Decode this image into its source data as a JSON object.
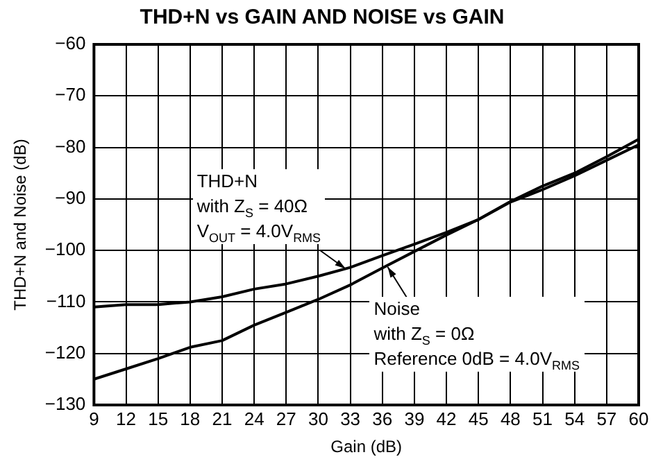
{
  "chart_data": {
    "type": "line",
    "title": "THD+N vs GAIN AND NOISE vs GAIN",
    "xlabel": "Gain (dB)",
    "ylabel": "THD+N and Noise (dB)",
    "xlim": [
      9,
      60
    ],
    "xticks": [
      9,
      12,
      15,
      18,
      21,
      24,
      27,
      30,
      33,
      36,
      39,
      42,
      45,
      48,
      51,
      54,
      57,
      60
    ],
    "ylim": [
      -130,
      -60
    ],
    "yticks": [
      -130,
      -120,
      -110,
      -100,
      -90,
      -80,
      -70,
      -60
    ],
    "grid": true,
    "legend": false,
    "marker": "none",
    "line_style": "solid",
    "x": [
      9,
      12,
      15,
      18,
      21,
      24,
      27,
      30,
      33,
      36,
      39,
      42,
      45,
      48,
      51,
      54,
      57,
      60
    ],
    "series": [
      {
        "color": "#000000",
        "values": [
          -111,
          -110.5,
          -110.5,
          -110,
          -109,
          -107.5,
          -106.5,
          -105,
          -103.3,
          -101,
          -98.8,
          -96.5,
          -94,
          -90.5,
          -87.5,
          -85,
          -81.8,
          -78.4
        ]
      },
      {
        "color": "#000000",
        "values": [
          -125,
          -123,
          -121,
          -118.8,
          -117.5,
          -114.5,
          -112,
          -109.5,
          -106.7,
          -103.4,
          -100.2,
          -97,
          -94,
          -90.6,
          -88.2,
          -85.5,
          -82.5,
          -79.5
        ]
      }
    ],
    "annotations": [
      "THD+N\nwith Z$_{S}$ = 40Ω\nV$_{OUT}$ = 4.0V$_{RMS}$",
      {
        "text": "Noise\nwith Z$_{S}$ = 0Ω\nReference 0dB = 4.0V$_{RMS}$",
        "x": 36.5,
        "y": -103.2
      }
    ]
  }
}
